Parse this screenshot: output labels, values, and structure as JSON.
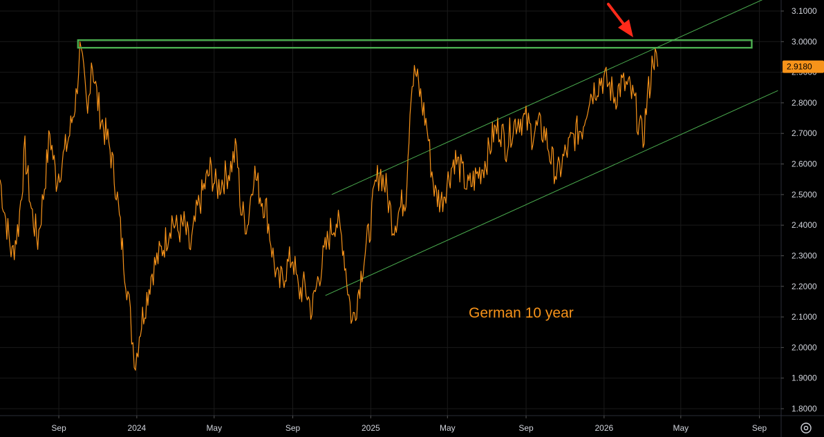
{
  "chart_data": {
    "type": "line",
    "title": "",
    "annotation": "German 10 year",
    "xlabel": "",
    "ylabel": "",
    "ylim": [
      1.77,
      3.16
    ],
    "y_ticks": [
      "1.8000",
      "1.9000",
      "2.0000",
      "2.1000",
      "2.2000",
      "2.3000",
      "2.4000",
      "2.5000",
      "2.6000",
      "2.7000",
      "2.8000",
      "2.9000",
      "3.0000",
      "3.1000"
    ],
    "x_ticks": [
      {
        "label": "Sep",
        "date": "2023-09-01"
      },
      {
        "label": "2024",
        "date": "2024-01-01"
      },
      {
        "label": "May",
        "date": "2024-05-01"
      },
      {
        "label": "Sep",
        "date": "2024-09-01"
      },
      {
        "label": "2025",
        "date": "2025-01-01"
      },
      {
        "label": "May",
        "date": "2025-05-01"
      },
      {
        "label": "Sep",
        "date": "2025-09-01"
      },
      {
        "label": "2026",
        "date": "2026-01-01"
      },
      {
        "label": "May",
        "date": "2026-05-01"
      },
      {
        "label": "Sep",
        "date": "2026-09-01"
      }
    ],
    "x_range": [
      "2023-06-01",
      "2026-10-05"
    ],
    "grid": true,
    "last_value": "2.9180",
    "series": [
      {
        "color": "#f7931a",
        "points": [
          [
            "2023-06-01",
            2.55
          ],
          [
            "2023-06-10",
            2.42
          ],
          [
            "2023-06-20",
            2.3
          ],
          [
            "2023-06-30",
            2.4
          ],
          [
            "2023-07-10",
            2.64
          ],
          [
            "2023-07-20",
            2.45
          ],
          [
            "2023-07-30",
            2.35
          ],
          [
            "2023-08-08",
            2.5
          ],
          [
            "2023-08-18",
            2.7
          ],
          [
            "2023-08-28",
            2.55
          ],
          [
            "2023-09-08",
            2.62
          ],
          [
            "2023-09-18",
            2.7
          ],
          [
            "2023-09-28",
            2.82
          ],
          [
            "2023-10-04",
            2.97
          ],
          [
            "2023-10-10",
            2.88
          ],
          [
            "2023-10-16",
            2.75
          ],
          [
            "2023-10-22",
            2.95
          ],
          [
            "2023-11-01",
            2.8
          ],
          [
            "2023-11-10",
            2.72
          ],
          [
            "2023-11-20",
            2.65
          ],
          [
            "2023-11-30",
            2.52
          ],
          [
            "2023-12-08",
            2.35
          ],
          [
            "2023-12-18",
            2.18
          ],
          [
            "2023-12-24",
            2.05
          ],
          [
            "2023-12-30",
            1.95
          ],
          [
            "2024-01-05",
            2.05
          ],
          [
            "2024-01-15",
            2.15
          ],
          [
            "2024-01-25",
            2.25
          ],
          [
            "2024-02-05",
            2.3
          ],
          [
            "2024-02-15",
            2.35
          ],
          [
            "2024-02-25",
            2.42
          ],
          [
            "2024-03-05",
            2.38
          ],
          [
            "2024-03-15",
            2.4
          ],
          [
            "2024-03-25",
            2.32
          ],
          [
            "2024-04-05",
            2.45
          ],
          [
            "2024-04-15",
            2.52
          ],
          [
            "2024-04-25",
            2.58
          ],
          [
            "2024-05-05",
            2.52
          ],
          [
            "2024-05-15",
            2.55
          ],
          [
            "2024-05-25",
            2.58
          ],
          [
            "2024-06-05",
            2.65
          ],
          [
            "2024-06-12",
            2.45
          ],
          [
            "2024-06-22",
            2.4
          ],
          [
            "2024-07-02",
            2.58
          ],
          [
            "2024-07-12",
            2.5
          ],
          [
            "2024-07-22",
            2.45
          ],
          [
            "2024-08-01",
            2.3
          ],
          [
            "2024-08-10",
            2.2
          ],
          [
            "2024-08-20",
            2.25
          ],
          [
            "2024-09-01",
            2.3
          ],
          [
            "2024-09-10",
            2.18
          ],
          [
            "2024-09-20",
            2.2
          ],
          [
            "2024-10-01",
            2.12
          ],
          [
            "2024-10-10",
            2.22
          ],
          [
            "2024-10-20",
            2.3
          ],
          [
            "2024-10-30",
            2.38
          ],
          [
            "2024-11-08",
            2.42
          ],
          [
            "2024-11-18",
            2.35
          ],
          [
            "2024-11-26",
            2.2
          ],
          [
            "2024-12-03",
            2.08
          ],
          [
            "2024-12-10",
            2.15
          ],
          [
            "2024-12-20",
            2.28
          ],
          [
            "2024-12-30",
            2.38
          ],
          [
            "2025-01-08",
            2.52
          ],
          [
            "2025-01-15",
            2.58
          ],
          [
            "2025-01-25",
            2.52
          ],
          [
            "2025-02-05",
            2.4
          ],
          [
            "2025-02-15",
            2.45
          ],
          [
            "2025-02-25",
            2.5
          ],
          [
            "2025-03-05",
            2.85
          ],
          [
            "2025-03-12",
            2.9
          ],
          [
            "2025-03-20",
            2.82
          ],
          [
            "2025-03-30",
            2.72
          ],
          [
            "2025-04-05",
            2.6
          ],
          [
            "2025-04-12",
            2.5
          ],
          [
            "2025-04-22",
            2.48
          ],
          [
            "2025-05-02",
            2.55
          ],
          [
            "2025-05-12",
            2.62
          ],
          [
            "2025-05-22",
            2.58
          ],
          [
            "2025-06-02",
            2.52
          ],
          [
            "2025-06-12",
            2.55
          ],
          [
            "2025-06-22",
            2.58
          ],
          [
            "2025-07-02",
            2.62
          ],
          [
            "2025-07-12",
            2.7
          ],
          [
            "2025-07-22",
            2.72
          ],
          [
            "2025-08-01",
            2.66
          ],
          [
            "2025-08-10",
            2.72
          ],
          [
            "2025-08-20",
            2.75
          ],
          [
            "2025-09-01",
            2.74
          ],
          [
            "2025-09-10",
            2.7
          ],
          [
            "2025-09-20",
            2.72
          ],
          [
            "2025-10-01",
            2.7
          ],
          [
            "2025-10-10",
            2.62
          ],
          [
            "2025-10-20",
            2.56
          ],
          [
            "2025-10-30",
            2.62
          ],
          [
            "2025-11-08",
            2.66
          ],
          [
            "2025-11-18",
            2.7
          ],
          [
            "2025-11-28",
            2.72
          ],
          [
            "2025-12-08",
            2.82
          ],
          [
            "2025-12-18",
            2.85
          ],
          [
            "2025-12-28",
            2.88
          ],
          [
            "2026-01-08",
            2.86
          ],
          [
            "2026-01-18",
            2.82
          ],
          [
            "2026-01-28",
            2.86
          ],
          [
            "2026-02-08",
            2.85
          ],
          [
            "2026-02-18",
            2.8
          ],
          [
            "2026-02-25",
            2.72
          ],
          [
            "2026-03-03",
            2.68
          ],
          [
            "2026-03-10",
            2.82
          ],
          [
            "2026-03-15",
            2.88
          ],
          [
            "2026-03-19",
            2.96
          ],
          [
            "2026-03-22",
            2.94
          ],
          [
            "2026-03-26",
            2.918
          ]
        ]
      }
    ],
    "resistance_box": {
      "from": "2023-10-01",
      "to": "2026-08-20",
      "y_low": 2.98,
      "y_high": 3.005
    },
    "channel_lines": [
      {
        "from_date": "2024-11-01",
        "from_value": 2.5,
        "to_date": "2026-09-30",
        "to_value": 3.16
      },
      {
        "from_date": "2024-10-22",
        "from_value": 2.17,
        "to_date": "2026-09-30",
        "to_value": 2.84
      }
    ],
    "arrow_marker": "red arrow pointing to the top of the channel"
  },
  "colors": {
    "background": "#000000",
    "line": "#f7931a",
    "channel": "#4caf50",
    "box": "#4caf50",
    "arrow": "#ff2a1a",
    "axis_text": "#d1d4dc",
    "grid": "#1a1a1a"
  },
  "icons": {
    "settings": "settings-icon"
  }
}
